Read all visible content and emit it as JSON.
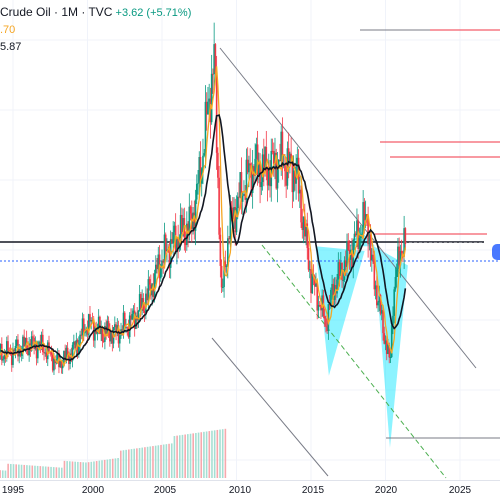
{
  "legend": {
    "title": "Crude Oil · 1M · TVC",
    "change": "+3.62 (+5.71%)",
    "ma1_value": ".70",
    "ma2_value": "5.87"
  },
  "x_axis": {
    "ticks": [
      "1995",
      "2000",
      "2005",
      "2010",
      "2015",
      "2020",
      "2025"
    ]
  },
  "colors": {
    "up": "#089981",
    "down": "#f23645",
    "ma_fast": "#f5a623",
    "ma_slow": "#131722",
    "pattern_fill": "#00e5ff",
    "channel": "#787b86",
    "projection": "#4caf50",
    "resistance": "#f23645"
  },
  "chart_data": {
    "type": "candlestick",
    "x_range": [
      1993,
      2028
    ],
    "series": [
      {
        "values": [
          [
            1993,
            20
          ],
          [
            1994,
            17
          ],
          [
            1995,
            18
          ],
          [
            1996,
            21
          ],
          [
            1997,
            20
          ],
          [
            1998,
            13
          ],
          [
            1999,
            18
          ],
          [
            2000,
            30
          ],
          [
            2001,
            26
          ],
          [
            2002,
            26
          ],
          [
            2003,
            31
          ],
          [
            2004,
            41
          ],
          [
            2005,
            57
          ],
          [
            2006,
            66
          ],
          [
            2007,
            72
          ],
          [
            2007.5,
            90
          ],
          [
            2008.5,
            140
          ],
          [
            2009,
            40
          ],
          [
            2009.5,
            70
          ],
          [
            2010,
            79
          ],
          [
            2011,
            95
          ],
          [
            2012,
            94
          ],
          [
            2013,
            98
          ],
          [
            2014,
            93
          ],
          [
            2015,
            49
          ],
          [
            2016,
            30
          ],
          [
            2016.5,
            45
          ],
          [
            2017,
            51
          ],
          [
            2018,
            65
          ],
          [
            2018.8,
            75
          ],
          [
            2019,
            57
          ],
          [
            2020.3,
            12
          ],
          [
            2020.5,
            40
          ],
          [
            2021,
            62
          ]
        ]
      }
    ]
  }
}
